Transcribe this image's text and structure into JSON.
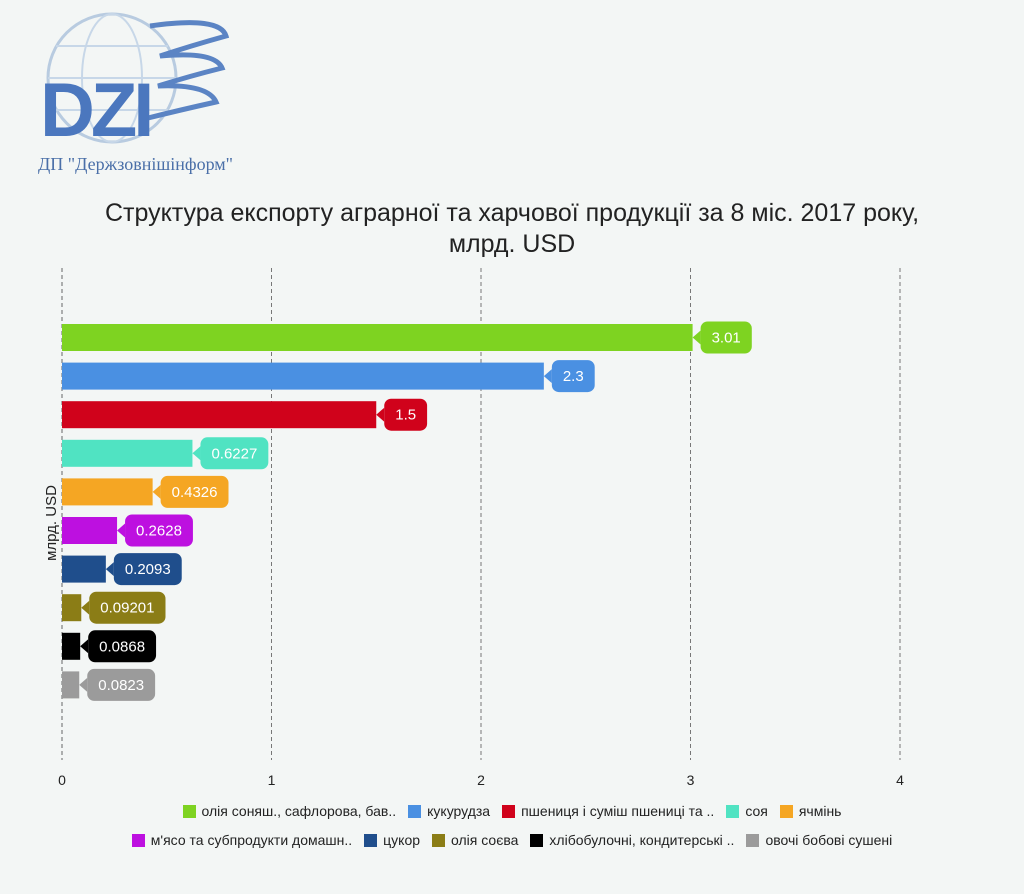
{
  "logo": {
    "text": "DZI",
    "subtitle": "ДП \"Держзовнішінформ\""
  },
  "chart_data": {
    "type": "bar",
    "orientation": "horizontal",
    "title_line1": "Структура експорту аграрної та харчової продукції за 8 міс. 2017 року,",
    "title_line2": "млрд. USD",
    "ylabel": "млрд. USD",
    "xlim": [
      0,
      4
    ],
    "xticks": [
      "0",
      "1",
      "2",
      "3",
      "4"
    ],
    "grid": "vertical dashed",
    "legend_position": "bottom",
    "bars": [
      {
        "name": "олія соняш., сафлорова, бав..",
        "value": 3.01,
        "label": "3.01",
        "color": "#7ed321"
      },
      {
        "name": "кукурудза",
        "value": 2.3,
        "label": "2.3",
        "color": "#4a90e2"
      },
      {
        "name": "пшениця і суміш пшениці та ..",
        "value": 1.5,
        "label": "1.5",
        "color": "#d0021b"
      },
      {
        "name": "соя",
        "value": 0.6227,
        "label": "0.6227",
        "color": "#50e3c2"
      },
      {
        "name": "ячмінь",
        "value": 0.4326,
        "label": "0.4326",
        "color": "#f5a623"
      },
      {
        "name": "м'ясо та субпродукти домашн..",
        "value": 0.2628,
        "label": "0.2628",
        "color": "#bd10e0"
      },
      {
        "name": "цукор",
        "value": 0.2093,
        "label": "0.2093",
        "color": "#1f4e8c"
      },
      {
        "name": "олія соєва",
        "value": 0.09201,
        "label": "0.09201",
        "color": "#8b7d16"
      },
      {
        "name": "хлібобулочні, кондитерські ..",
        "value": 0.0868,
        "label": "0.0868",
        "color": "#000000"
      },
      {
        "name": "овочі бобові сушені",
        "value": 0.0823,
        "label": "0.0823",
        "color": "#9b9b9b"
      }
    ]
  }
}
